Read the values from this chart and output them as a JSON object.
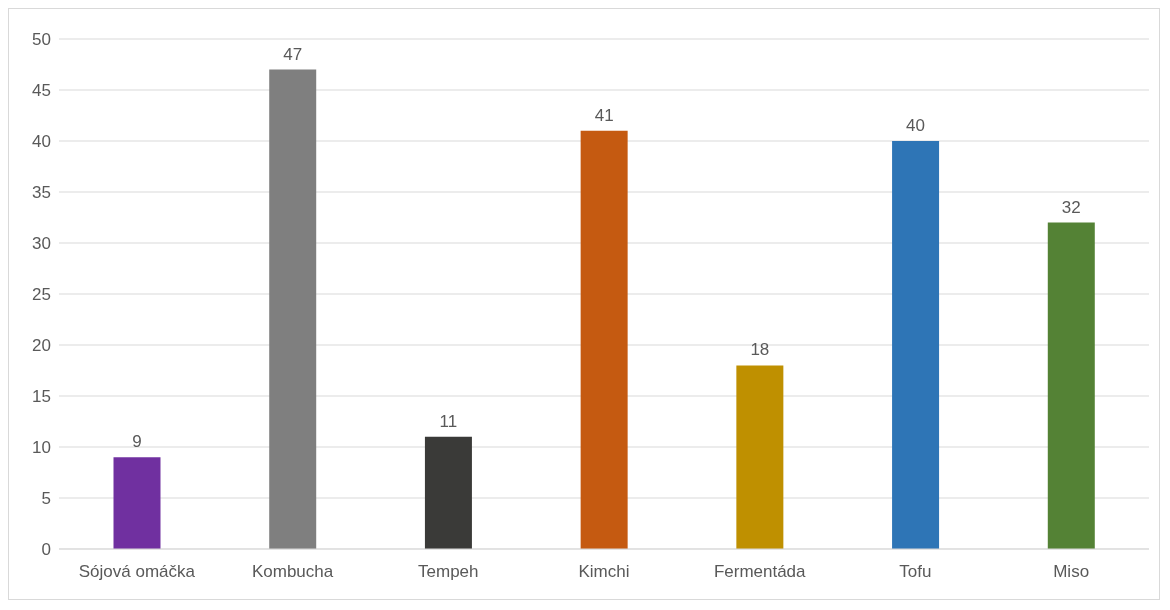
{
  "chart_data": {
    "type": "bar",
    "categories": [
      "Sójová omáčka",
      "Kombucha",
      "Tempeh",
      "Kimchi",
      "Fermentáda",
      "Tofu",
      "Miso"
    ],
    "values": [
      9,
      47,
      11,
      41,
      18,
      40,
      32
    ],
    "colors": [
      "#7030a0",
      "#7f7f7f",
      "#3a3a38",
      "#c55a11",
      "#bf9000",
      "#2e75b6",
      "#548235"
    ],
    "ylim": [
      0,
      50
    ],
    "yticks": [
      0,
      5,
      10,
      15,
      20,
      25,
      30,
      35,
      40,
      45,
      50
    ],
    "grid": "y",
    "data_labels": true
  }
}
